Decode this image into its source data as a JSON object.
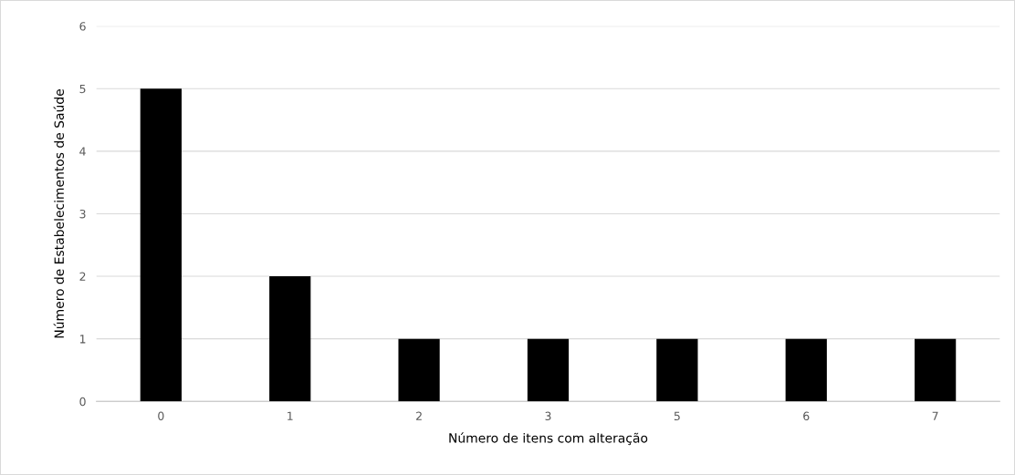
{
  "chart_data": {
    "type": "bar",
    "xlabel": "Número de itens com alteração",
    "ylabel": "Número de Estabelecimentos de Saúde",
    "categories": [
      "0",
      "1",
      "2",
      "3",
      "5",
      "6",
      "7"
    ],
    "values": [
      5,
      2,
      1,
      1,
      1,
      1,
      1
    ],
    "color": "#000000",
    "ylim": [
      0,
      6
    ],
    "yticks": [
      0,
      1,
      2,
      3,
      4,
      5,
      6
    ],
    "grid": "y",
    "legend": false
  }
}
